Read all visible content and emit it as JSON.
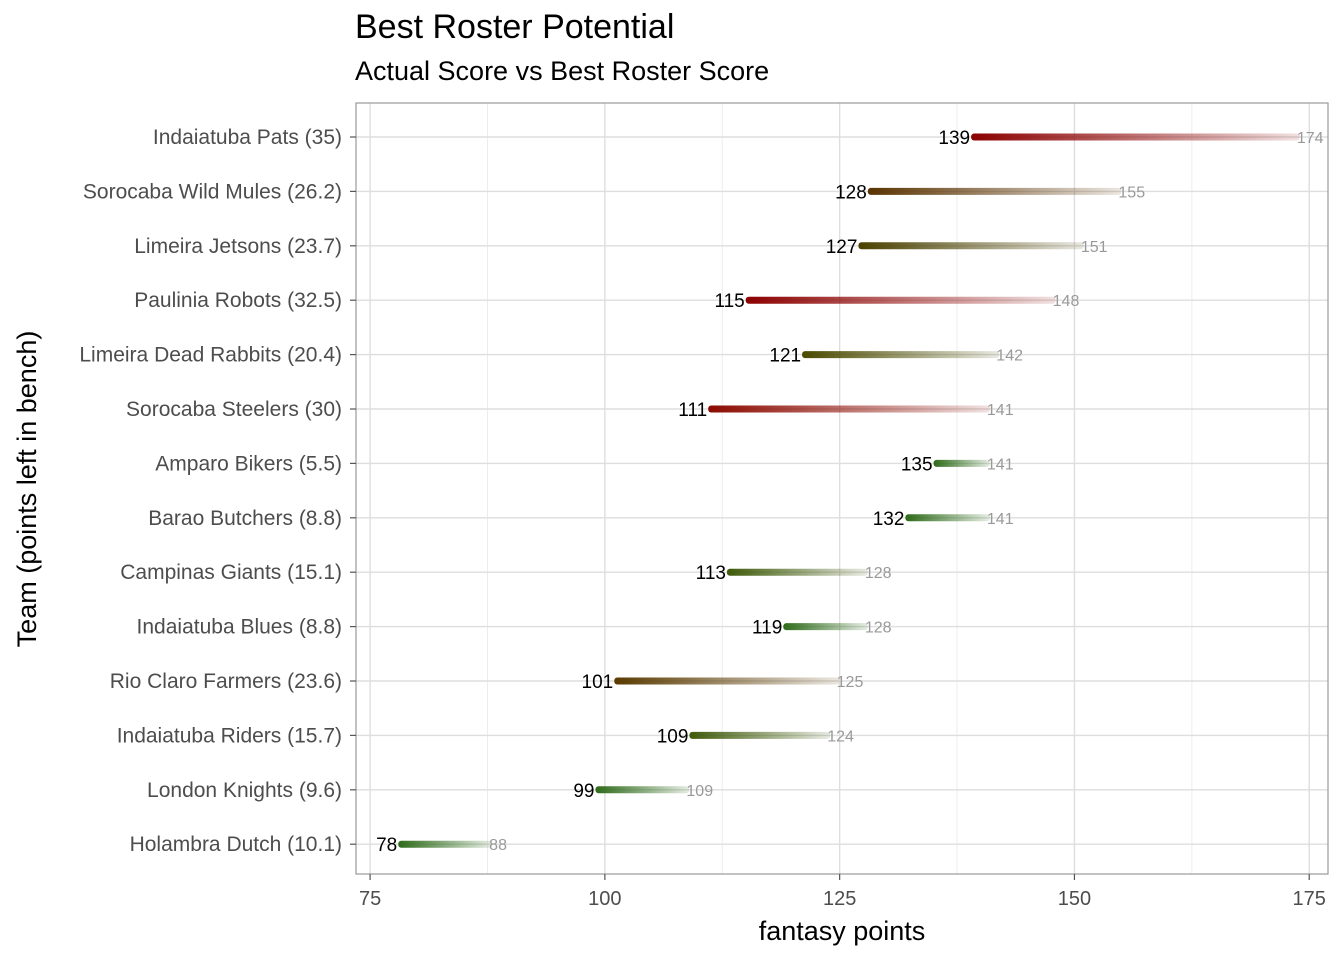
{
  "chart_data": {
    "type": "bar",
    "title": "Best Roster Potential",
    "subtitle": "Actual Score vs Best Roster Score",
    "xlabel": "fantasy points",
    "ylabel": "Team (points left in bench)",
    "xlim": [
      73.5,
      177
    ],
    "xticks": [
      75,
      100,
      125,
      150,
      175
    ],
    "grid": true,
    "colors": {
      "high_bench": "#8b0000",
      "mid_bench": "#5a3a00",
      "low_bench": "#3a6a1a",
      "best_label": "#999999",
      "actual_label": "#000000"
    },
    "rows": [
      {
        "label": "Indaiatuba Pats (35)",
        "actual": 139,
        "best": 174,
        "color": "#8b0000"
      },
      {
        "label": "Sorocaba Wild Mules (26.2)",
        "actual": 128,
        "best": 155,
        "color": "#5a3200"
      },
      {
        "label": "Limeira Jetsons (23.7)",
        "actual": 127,
        "best": 151,
        "color": "#4a4000"
      },
      {
        "label": "Paulinia Robots (32.5)",
        "actual": 115,
        "best": 148,
        "color": "#8b0000"
      },
      {
        "label": "Limeira Dead Rabbits (20.4)",
        "actual": 121,
        "best": 142,
        "color": "#4a4a00"
      },
      {
        "label": "Sorocaba Steelers (30)",
        "actual": 111,
        "best": 141,
        "color": "#8b0a00"
      },
      {
        "label": "Amparo Bikers (5.5)",
        "actual": 135,
        "best": 141,
        "color": "#2e6b1a"
      },
      {
        "label": "Barao Butchers (8.8)",
        "actual": 132,
        "best": 141,
        "color": "#2e6b1a"
      },
      {
        "label": "Campinas Giants (15.1)",
        "actual": 113,
        "best": 128,
        "color": "#3f5a0a"
      },
      {
        "label": "Indaiatuba Blues (8.8)",
        "actual": 119,
        "best": 128,
        "color": "#2e6b1a"
      },
      {
        "label": "Rio Claro Farmers (23.6)",
        "actual": 101,
        "best": 125,
        "color": "#5a3a00"
      },
      {
        "label": "Indaiatuba Riders (15.7)",
        "actual": 109,
        "best": 124,
        "color": "#3f5a0a"
      },
      {
        "label": "London Knights (9.6)",
        "actual": 99,
        "best": 109,
        "color": "#2e6b1a"
      },
      {
        "label": "Holambra Dutch (10.1)",
        "actual": 78,
        "best": 88,
        "color": "#2e6b1a"
      }
    ]
  }
}
